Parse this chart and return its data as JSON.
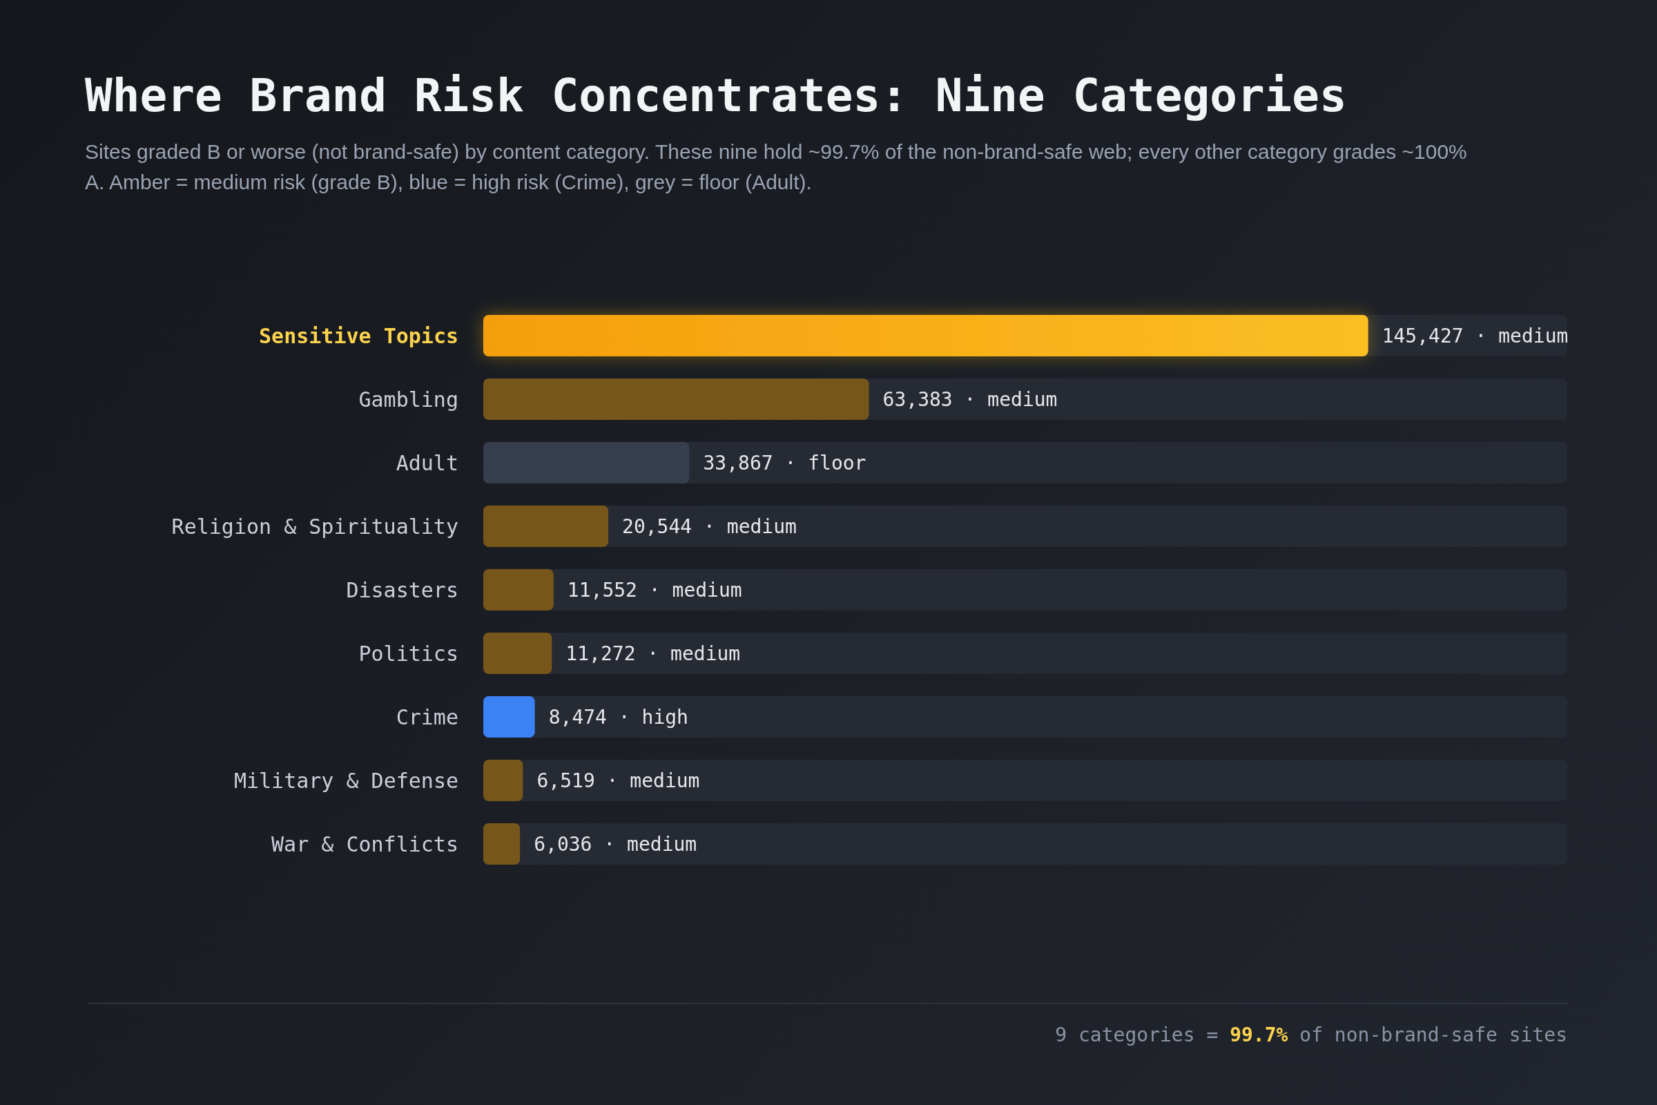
{
  "chart_data": {
    "type": "bar",
    "orientation": "horizontal",
    "title": "Where Brand Risk Concentrates: Nine Categories",
    "subtitle": "Sites graded B or worse (not brand-safe) by content category. These nine hold ~99.7% of the non-brand-safe web; every other category grades ~100% A. Amber = medium risk (grade B), blue = high risk (Crime), grey = floor (Adult).",
    "categories": [
      "Sensitive Topics",
      "Gambling",
      "Adult",
      "Religion & Spirituality",
      "Disasters",
      "Politics",
      "Crime",
      "Military & Defense",
      "War & Conflicts"
    ],
    "values": [
      145427,
      63383,
      33867,
      20544,
      11552,
      11272,
      8474,
      6519,
      6036
    ],
    "value_labels": [
      "145,427 · medium",
      "63,383 · medium",
      "33,867 · floor",
      "20,544 · medium",
      "11,552 · medium",
      "11,272 · medium",
      "8,474 · high",
      "6,519 · medium",
      "6,036 · medium"
    ],
    "colors": [
      "#fbbf24",
      "#76561a",
      "#363d4c",
      "#76561a",
      "#76561a",
      "#76561a",
      "#3b82f6",
      "#76561a",
      "#76561a"
    ],
    "annotations": [
      "9 categories = 99.7% of non-brand-safe sites"
    ],
    "grid": false
  }
}
